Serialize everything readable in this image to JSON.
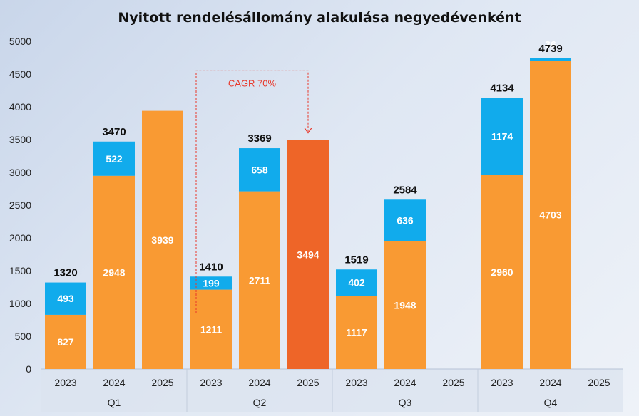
{
  "colors": {
    "base": "#f99a33",
    "increase": "#11abec",
    "highlight": "#ee6528",
    "annotation": "#e8382b",
    "axis_band": "#dbe3ef"
  },
  "chart_data": {
    "type": "bar",
    "stacked": true,
    "title": "Nyitott rendelésállomány alakulása negyedévenként",
    "xlabel": "",
    "ylabel": "",
    "ylim": [
      0,
      5000
    ],
    "yticks": [
      0,
      500,
      1000,
      1500,
      2000,
      2500,
      3000,
      3500,
      4000,
      4500,
      5000
    ],
    "grid": false,
    "groups": [
      "Q1",
      "Q2",
      "Q3",
      "Q4"
    ],
    "categories": [
      "2023",
      "2024",
      "2025"
    ],
    "bars": [
      {
        "group": "Q1",
        "year": "2023",
        "base": 827,
        "increase": 493,
        "total": "1320"
      },
      {
        "group": "Q1",
        "year": "2024",
        "base": 2948,
        "increase": 522,
        "total": "3470"
      },
      {
        "group": "Q1",
        "year": "2025",
        "base": 3939,
        "increase": null,
        "total": null
      },
      {
        "group": "Q2",
        "year": "2023",
        "base": 1211,
        "increase": 199,
        "total": "1410"
      },
      {
        "group": "Q2",
        "year": "2024",
        "base": 2711,
        "increase": 658,
        "total": "3369"
      },
      {
        "group": "Q2",
        "year": "2025",
        "base": 3494,
        "increase": null,
        "total": null,
        "highlight": true
      },
      {
        "group": "Q3",
        "year": "2023",
        "base": 1117,
        "increase": 402,
        "total": "1519"
      },
      {
        "group": "Q3",
        "year": "2024",
        "base": 1948,
        "increase": 636,
        "total": "2584"
      },
      {
        "group": "Q3",
        "year": "2025",
        "base": null,
        "increase": null,
        "total": null
      },
      {
        "group": "Q4",
        "year": "2023",
        "base": 2960,
        "increase": 1174,
        "total": "4134"
      },
      {
        "group": "Q4",
        "year": "2024",
        "base": 4703,
        "increase": 36,
        "total": "4739"
      },
      {
        "group": "Q4",
        "year": "2025",
        "base": null,
        "increase": null,
        "total": null
      }
    ],
    "annotations": [
      {
        "text": "CAGR 70%",
        "from": {
          "group": "Q2",
          "year": "2023"
        },
        "to": {
          "group": "Q2",
          "year": "2025"
        }
      }
    ]
  }
}
